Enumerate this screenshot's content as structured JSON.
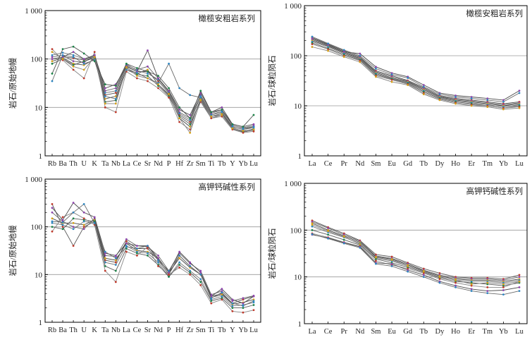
{
  "chart_data": [
    {
      "type": "line",
      "title": "橄榄安粗岩系列",
      "ylabel": "岩石/原始地幔",
      "yscale": "log",
      "ylim": [
        1,
        1000
      ],
      "yticks": [
        "1",
        "10",
        "100",
        "1 000"
      ],
      "grid": "horizontal at 10 and 100",
      "legend": "none",
      "categories": [
        "Rb",
        "Ba",
        "Th",
        "U",
        "K",
        "Ta",
        "Nb",
        "La",
        "Ce",
        "Sr",
        "Nd",
        "P",
        "Hf",
        "Zr",
        "Sm",
        "Ti",
        "Tb",
        "Y",
        "Yb",
        "Lu"
      ],
      "series": [
        {
          "values": [
            100,
            110,
            105,
            95,
            110,
            18,
            20,
            72,
            55,
            55,
            35,
            20,
            7,
            5,
            17,
            7,
            8,
            4,
            3.5,
            4
          ]
        },
        {
          "values": [
            110,
            120,
            90,
            85,
            120,
            22,
            25,
            75,
            60,
            70,
            40,
            22,
            8,
            6,
            18,
            7.5,
            9,
            4.2,
            3.8,
            4.2
          ]
        },
        {
          "values": [
            90,
            105,
            80,
            75,
            100,
            15,
            17,
            65,
            50,
            60,
            30,
            18,
            6,
            4,
            15,
            6.5,
            7.5,
            3.8,
            3.2,
            3.6
          ]
        },
        {
          "values": [
            120,
            135,
            120,
            100,
            115,
            20,
            22,
            78,
            58,
            50,
            38,
            21,
            7.5,
            5.5,
            17,
            7,
            8.5,
            4.3,
            3.7,
            4
          ]
        },
        {
          "values": [
            80,
            100,
            75,
            90,
            105,
            13,
            14,
            60,
            48,
            45,
            28,
            17,
            6.5,
            4.5,
            14,
            6,
            7,
            3.6,
            3.1,
            3.4
          ]
        },
        {
          "values": [
            160,
            95,
            60,
            40,
            140,
            10,
            8,
            55,
            40,
            35,
            25,
            16,
            5,
            3.5,
            13,
            6,
            6.5,
            3.5,
            3,
            3.2
          ]
        },
        {
          "values": [
            100,
            110,
            140,
            100,
            120,
            25,
            30,
            70,
            55,
            150,
            40,
            22,
            9,
            7,
            20,
            8,
            10,
            4.5,
            4,
            4.5
          ]
        },
        {
          "values": [
            35,
            120,
            110,
            80,
            95,
            17,
            15,
            60,
            52,
            40,
            32,
            80,
            25,
            18,
            16,
            7,
            8,
            4,
            3.5,
            3.8
          ]
        },
        {
          "values": [
            140,
            100,
            70,
            60,
            110,
            12,
            12,
            68,
            45,
            40,
            30,
            19,
            6,
            3,
            14,
            6.5,
            7,
            3.7,
            3.3,
            3.5
          ]
        },
        {
          "values": [
            50,
            160,
            180,
            130,
            90,
            30,
            28,
            80,
            65,
            55,
            45,
            25,
            10,
            6,
            22,
            8,
            9,
            4.5,
            4,
            7
          ]
        }
      ]
    },
    {
      "type": "line",
      "title": "橄榄安粗岩系列",
      "ylabel": "岩石/球粒陨石",
      "yscale": "log",
      "ylim": [
        1,
        1000
      ],
      "yticks": [
        "1",
        "10",
        "100",
        "1 000"
      ],
      "grid": "horizontal at 10 and 100",
      "legend": "none",
      "categories": [
        "La",
        "Ce",
        "Pr",
        "Nd",
        "Sm",
        "Eu",
        "Gd",
        "Tb",
        "Dy",
        "Ho",
        "Er",
        "Tm",
        "Yb",
        "Lu"
      ],
      "series": [
        {
          "values": [
            230,
            170,
            125,
            95,
            50,
            40,
            32,
            23,
            16,
            14,
            13,
            12,
            11,
            12
          ]
        },
        {
          "values": [
            210,
            160,
            120,
            92,
            48,
            38,
            31,
            22,
            15.5,
            13.5,
            12.5,
            11.5,
            10.5,
            11.5
          ]
        },
        {
          "values": [
            200,
            155,
            115,
            88,
            46,
            36,
            30,
            21,
            15,
            13,
            12,
            11,
            10,
            11
          ]
        },
        {
          "values": [
            190,
            150,
            110,
            85,
            44,
            35,
            29,
            20,
            14.5,
            12.5,
            11.5,
            10.5,
            9.5,
            10.5
          ]
        },
        {
          "values": [
            180,
            140,
            105,
            82,
            42,
            34,
            28,
            19,
            14,
            12,
            11,
            10,
            9,
            10
          ]
        },
        {
          "values": [
            170,
            135,
            100,
            80,
            40,
            33,
            27,
            18,
            13.5,
            11.5,
            10.5,
            10,
            9,
            9.5
          ]
        },
        {
          "values": [
            220,
            165,
            120,
            110,
            60,
            45,
            38,
            26,
            18,
            16,
            15,
            14,
            13,
            20
          ]
        },
        {
          "values": [
            240,
            175,
            130,
            100,
            55,
            42,
            36,
            24,
            17,
            15,
            14,
            13,
            12,
            18
          ]
        },
        {
          "values": [
            150,
            125,
            95,
            75,
            38,
            30,
            26,
            17,
            13,
            11,
            10,
            9.5,
            8.5,
            9
          ]
        }
      ]
    },
    {
      "type": "line",
      "title": "高钾钙碱性系列",
      "ylabel": "岩石/原始地幔",
      "yscale": "log",
      "ylim": [
        1,
        1000
      ],
      "yticks": [
        "1",
        "10",
        "100",
        "1 000"
      ],
      "grid": "horizontal at 10 and 100",
      "legend": "none",
      "categories": [
        "Rb",
        "Ba",
        "Th",
        "U",
        "K",
        "Ta",
        "Nb",
        "La",
        "Ce",
        "Sr",
        "Nd",
        "P",
        "Hf",
        "Zr",
        "Sm",
        "Ti",
        "Tb",
        "Y",
        "Yb",
        "Lu"
      ],
      "series": [
        {
          "values": [
            300,
            100,
            40,
            100,
            130,
            20,
            18,
            50,
            35,
            35,
            20,
            10,
            25,
            15,
            10,
            3.5,
            4,
            2.5,
            3,
            3.5
          ]
        },
        {
          "values": [
            200,
            130,
            100,
            90,
            150,
            25,
            24,
            55,
            40,
            38,
            25,
            12,
            28,
            17,
            12,
            3.8,
            4.5,
            2.8,
            3.2,
            3.6
          ]
        },
        {
          "values": [
            150,
            120,
            120,
            110,
            140,
            22,
            20,
            45,
            32,
            30,
            22,
            11,
            22,
            14,
            10,
            3.3,
            3.8,
            2.4,
            2.6,
            3
          ]
        },
        {
          "values": [
            120,
            110,
            90,
            130,
            120,
            18,
            16,
            40,
            30,
            28,
            18,
            9,
            18,
            12,
            8,
            3,
            3.5,
            2.2,
            2.3,
            2.6
          ]
        },
        {
          "values": [
            100,
            90,
            150,
            140,
            130,
            15,
            12,
            35,
            28,
            25,
            16,
            9,
            16,
            11,
            7,
            2.8,
            3.2,
            2,
            2,
            2.3
          ]
        },
        {
          "values": [
            80,
            160,
            200,
            150,
            110,
            12,
            7,
            30,
            25,
            38,
            15,
            10,
            14,
            10,
            6,
            2.5,
            3,
            1.7,
            1.6,
            1.8
          ]
        },
        {
          "values": [
            250,
            140,
            320,
            200,
            160,
            28,
            25,
            45,
            40,
            40,
            22,
            11,
            30,
            18,
            11,
            3.5,
            5,
            3,
            2.5,
            3.5
          ]
        },
        {
          "values": [
            130,
            125,
            200,
            300,
            120,
            30,
            22,
            38,
            35,
            40,
            20,
            12,
            25,
            15,
            10,
            3.2,
            4.2,
            2.5,
            2.2,
            2.8
          ]
        }
      ]
    },
    {
      "type": "line",
      "title": "高钾钙碱性系列",
      "ylabel": "岩石/球粒陨石",
      "yscale": "log",
      "ylim": [
        1,
        1000
      ],
      "yticks": [
        "1",
        "10",
        "100",
        "1 000"
      ],
      "grid": "horizontal at 10 and 100",
      "legend": "none",
      "categories": [
        "La",
        "Ce",
        "Pr",
        "Nd",
        "Sm",
        "Eu",
        "Gd",
        "Tb",
        "Dy",
        "Ho",
        "Er",
        "Tm",
        "Yb",
        "Lu"
      ],
      "series": [
        {
          "values": [
            160,
            115,
            85,
            60,
            30,
            27,
            20,
            15,
            12,
            10,
            9.5,
            9.5,
            9,
            11
          ]
        },
        {
          "values": [
            150,
            110,
            80,
            58,
            28,
            25,
            19,
            14,
            11,
            9.5,
            9,
            9,
            8.5,
            10
          ]
        },
        {
          "values": [
            140,
            100,
            75,
            55,
            27,
            24,
            18,
            13.5,
            10.5,
            9,
            8.5,
            8.5,
            8,
            9
          ]
        },
        {
          "values": [
            120,
            90,
            70,
            52,
            25,
            22,
            17,
            13,
            10,
            8.5,
            8,
            8,
            7.5,
            8.5
          ]
        },
        {
          "values": [
            100,
            80,
            62,
            48,
            24,
            20,
            16,
            12.5,
            9.5,
            8,
            7.5,
            7,
            6.5,
            7.5
          ]
        },
        {
          "values": [
            85,
            70,
            55,
            45,
            22,
            18,
            15,
            12,
            9,
            7.5,
            6.5,
            6,
            6,
            8
          ]
        },
        {
          "values": [
            80,
            68,
            54,
            44,
            20,
            19,
            14,
            11,
            8,
            6.5,
            5.5,
            5,
            5.2,
            6
          ]
        },
        {
          "values": [
            82,
            66,
            52,
            42,
            19,
            17,
            13,
            10,
            7.5,
            6,
            5,
            4.5,
            4.2,
            5
          ]
        },
        {
          "values": [
            130,
            95,
            72,
            50,
            26,
            23,
            17,
            13,
            10,
            8.5,
            7,
            7.5,
            7,
            8
          ]
        }
      ]
    }
  ]
}
